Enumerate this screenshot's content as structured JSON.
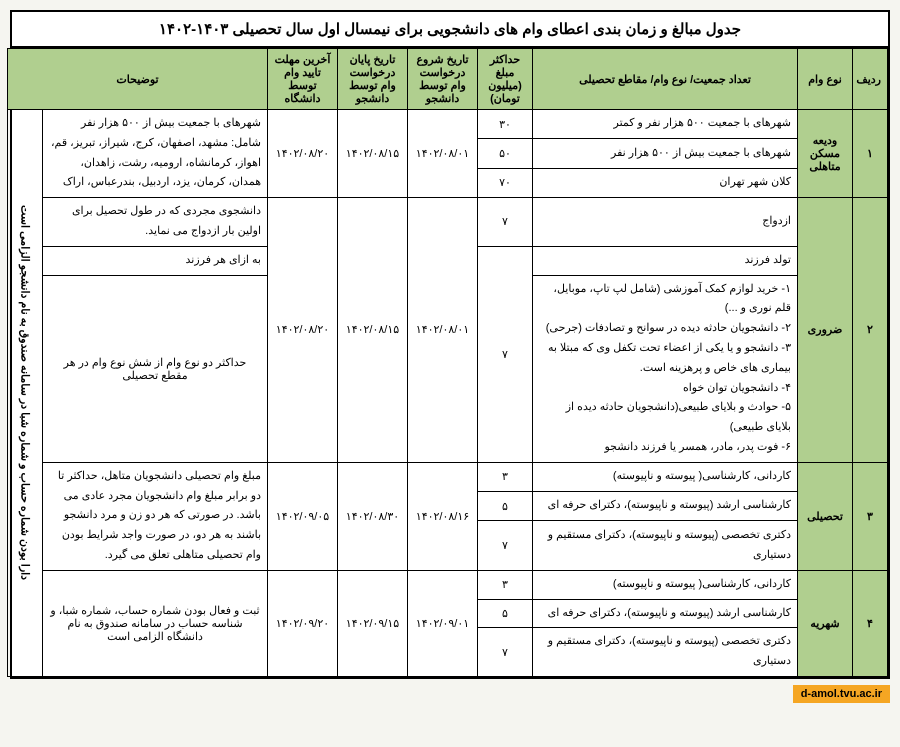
{
  "title": "جدول مبالغ و زمان بندی اعطای وام های دانشجویی برای نیمسال اول سال تحصیلی ۱۴۰۳-۱۴۰۲",
  "columns": {
    "c1": "ردیف",
    "c2": "نوع وام",
    "c3": "تعداد جمعیت/ نوع وام/ مقاطع تحصیلی",
    "c4": "حداکثر مبلغ (میلیون تومان)",
    "c5": "تاریخ شروع درخواست وام توسط دانشجو",
    "c6": "تاریخ پایان درخواست وام توسط دانشجو",
    "c7": "آخرین مهلت تایید وام توسط دانشگاه",
    "c8": "توضیحات"
  },
  "colwidths": {
    "c1": "35px",
    "c2": "55px",
    "c3": "265px",
    "c4": "55px",
    "c5": "70px",
    "c6": "70px",
    "c7": "70px",
    "c8a": "225px",
    "c8b": "35px"
  },
  "sidenote": "دارا بودن شماره حساب و شماره شبا در سامانه صندوق به نام دانشجو الزامی است",
  "rows": {
    "r1": {
      "no": "۱",
      "type": "ودیعه مسکن متاهلی",
      "a": "شهرهای با جمعیت ۵۰۰ هزار نفر و کمتر",
      "va": "۳۰",
      "b": "شهرهای با جمعیت بیش از ۵۰۰ هزار نفر",
      "vb": "۵۰",
      "c": "کلان شهر تهران",
      "vc": "۷۰",
      "start": "۱۴۰۲/۰۸/۰۱",
      "end": "۱۴۰۲/۰۸/۱۵",
      "due": "۱۴۰۲/۰۸/۲۰",
      "note": "شهرهای با جمعیت بیش از ۵۰۰ هزار نفر شامل: مشهد، اصفهان، کرج، شیراز، تبریز، قم، اهواز، کرمانشاه، ارومیه، رشت، زاهدان، همدان، کرمان، یزد، اردبیل، بندرعباس، اراک"
    },
    "r2": {
      "no": "۲",
      "type": "ضروری",
      "a": "ازدواج",
      "va": "۷",
      "b": "تولد فرزند",
      "c": "۱- خرید لوازم کمک آموزشی (شامل لپ تاپ، موبایل، قلم نوری و ...)\n۲- دانشجویان حادثه دیده در سوانح و تصادفات (جرحی)\n۳- دانشجو و یا یکی از اعضاء تحت تکفل وی که مبتلا به بیماری های خاص و پرهزینه است.\n۴- دانشجویان توان خواه\n۵- حوادث و بلایای طبیعی(دانشجویان حادثه دیده از بلایای طبیعی)\n۶- فوت پدر، مادر، همسر یا فرزند دانشجو",
      "vc": "۷",
      "start": "۱۴۰۲/۰۸/۰۱",
      "end": "۱۴۰۲/۰۸/۱۵",
      "due": "۱۴۰۲/۰۸/۲۰",
      "note1": "دانشجوی مجردی که در طول تحصیل برای اولین بار ازدواج می نماید.",
      "note2": "به ازای هر فرزند",
      "note3": "حداکثر دو نوع وام از شش نوع وام در هر مقطع تحصیلی"
    },
    "r3": {
      "no": "۳",
      "type": "تحصیلی",
      "a": "کاردانی، کارشناسی( پیوسته و ناپیوسته)",
      "va": "۳",
      "b": "کارشناسی ارشد (پیوسته و ناپیوسته)، دکترای حرفه ای",
      "vb": "۵",
      "c": "دکتری تخصصی (پیوسته و ناپیوسته)، دکترای مستقیم و دستیاری",
      "vc": "۷",
      "start": "۱۴۰۲/۰۸/۱۶",
      "end": "۱۴۰۲/۰۸/۳۰",
      "due": "۱۴۰۲/۰۹/۰۵",
      "note": "مبلغ وام تحصیلی دانشجویان متاهل، حداکثر تا دو برابر مبلغ وام دانشجویان مجرد عادی می باشد. در صورتی که هر دو زن و مرد دانشجو باشند به هر دو، در صورت واجد شرایط بودن وام تحصیلی متاهلی تعلق می گیرد."
    },
    "r4": {
      "no": "۴",
      "type": "شهریه",
      "a": "کاردانی، کارشناسی( پیوسته و ناپیوسته)",
      "va": "۳",
      "b": "کارشناسی ارشد (پیوسته و ناپیوسته)، دکترای حرفه ای",
      "vb": "۵",
      "c": "دکتری تخصصی (پیوسته و ناپیوسته)، دکترای مستقیم و دستیاری",
      "vc": "۷",
      "start": "۱۴۰۲/۰۹/۰۱",
      "end": "۱۴۰۲/۰۹/۱۵",
      "due": "۱۴۰۲/۰۹/۲۰",
      "note": "ثبت و فعال بودن شماره حساب، شماره شبا، و شناسه حساب در سامانه صندوق به نام دانشگاه الزامی است"
    }
  },
  "footer": "d-amol.tvu.ac.ir",
  "colors": {
    "green": "#b0cf8f",
    "orange": "#f5a623"
  }
}
